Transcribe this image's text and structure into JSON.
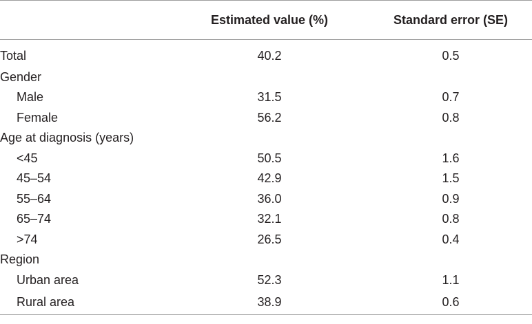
{
  "headers": {
    "label": "",
    "estimate": "Estimated value (%)",
    "se": "Standard error (SE)"
  },
  "rows": [
    {
      "label": "Total",
      "indent": false,
      "estimate": "40.2",
      "se": "0.5"
    },
    {
      "label": "Gender",
      "indent": false,
      "estimate": "",
      "se": ""
    },
    {
      "label": "Male",
      "indent": true,
      "estimate": "31.5",
      "se": "0.7"
    },
    {
      "label": "Female",
      "indent": true,
      "estimate": "56.2",
      "se": "0.8"
    },
    {
      "label": "Age at diagnosis (years)",
      "indent": false,
      "estimate": "",
      "se": ""
    },
    {
      "label": "<45",
      "indent": true,
      "estimate": "50.5",
      "se": "1.6"
    },
    {
      "label": "45–54",
      "indent": true,
      "estimate": "42.9",
      "se": "1.5"
    },
    {
      "label": "55–64",
      "indent": true,
      "estimate": "36.0",
      "se": "0.9"
    },
    {
      "label": "65–74",
      "indent": true,
      "estimate": "32.1",
      "se": "0.8"
    },
    {
      "label": ">74",
      "indent": true,
      "estimate": "26.5",
      "se": "0.4"
    },
    {
      "label": "Region",
      "indent": false,
      "estimate": "",
      "se": ""
    },
    {
      "label": "Urban area",
      "indent": true,
      "estimate": "52.3",
      "se": "1.1"
    },
    {
      "label": "Rural area",
      "indent": true,
      "estimate": "38.9",
      "se": "0.6"
    }
  ]
}
